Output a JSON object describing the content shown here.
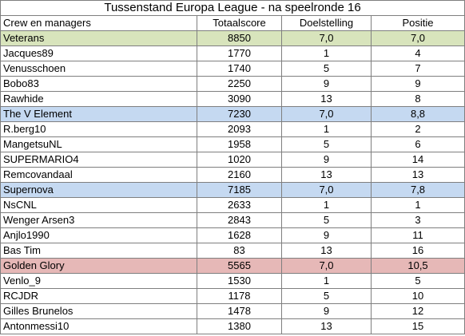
{
  "title": "Tussenstand Europa League - na speelronde 16",
  "headers": [
    "Crew en managers",
    "Totaalscore",
    "Doelstelling",
    "Positie"
  ],
  "colors": {
    "team_green": "#d8e4bc",
    "team_blue": "#c5d9f1",
    "team_red": "#e6b8b7",
    "grid": "#7f7f7f"
  },
  "rows": [
    {
      "name": "Veterans",
      "score": "8850",
      "target": "7,0",
      "pos": "7,0",
      "team": "green"
    },
    {
      "name": "Jacques89",
      "score": "1770",
      "target": "1",
      "pos": "4"
    },
    {
      "name": "Venusschoen",
      "score": "1740",
      "target": "5",
      "pos": "7"
    },
    {
      "name": "Bobo83",
      "score": "2250",
      "target": "9",
      "pos": "9"
    },
    {
      "name": "Rawhide",
      "score": "3090",
      "target": "13",
      "pos": "8"
    },
    {
      "name": "The V Element",
      "score": "7230",
      "target": "7,0",
      "pos": "8,8",
      "team": "blue"
    },
    {
      "name": "R.berg10",
      "score": "2093",
      "target": "1",
      "pos": "2"
    },
    {
      "name": "MangetsuNL",
      "score": "1958",
      "target": "5",
      "pos": "6"
    },
    {
      "name": "SUPERMARIO4",
      "score": "1020",
      "target": "9",
      "pos": "14"
    },
    {
      "name": "Remcovandaal",
      "score": "2160",
      "target": "13",
      "pos": "13"
    },
    {
      "name": "Supernova",
      "score": "7185",
      "target": "7,0",
      "pos": "7,8",
      "team": "blue"
    },
    {
      "name": "NsCNL",
      "score": "2633",
      "target": "1",
      "pos": "1"
    },
    {
      "name": "Wenger Arsen3",
      "score": "2843",
      "target": "5",
      "pos": "3"
    },
    {
      "name": "Anjlo1990",
      "score": "1628",
      "target": "9",
      "pos": "11"
    },
    {
      "name": "Bas Tim",
      "score": "83",
      "target": "13",
      "pos": "16"
    },
    {
      "name": "Golden Glory",
      "score": "5565",
      "target": "7,0",
      "pos": "10,5",
      "team": "red"
    },
    {
      "name": "Venlo_9",
      "score": "1530",
      "target": "1",
      "pos": "5"
    },
    {
      "name": "RCJDR",
      "score": "1178",
      "target": "5",
      "pos": "10"
    },
    {
      "name": "Gilles Brunelos",
      "score": "1478",
      "target": "9",
      "pos": "12"
    },
    {
      "name": "Antonmessi10",
      "score": "1380",
      "target": "13",
      "pos": "15"
    }
  ]
}
